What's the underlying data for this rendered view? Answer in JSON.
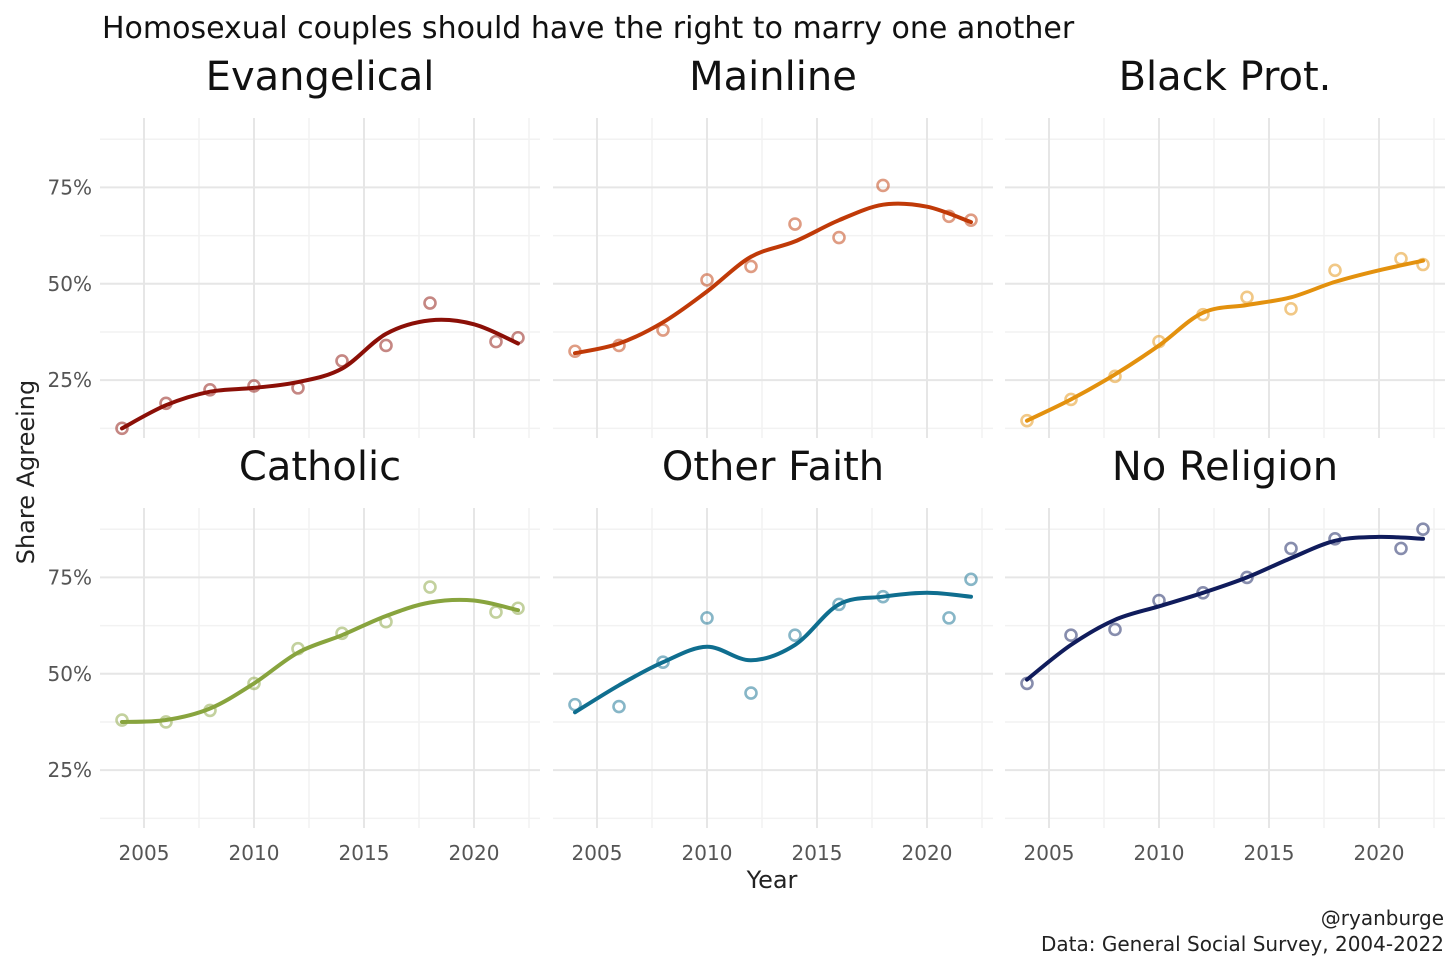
{
  "chart_data": {
    "type": "scatter",
    "title": "Homosexual couples should have the right to marry one another",
    "xlabel": "Year",
    "ylabel": "Share Agreeing",
    "xlim": [
      2003,
      2023
    ],
    "ylim": [
      0.1,
      0.93
    ],
    "x_ticks": [
      2005,
      2010,
      2015,
      2020
    ],
    "y_ticks": [
      0.25,
      0.5,
      0.75
    ],
    "x_tick_labels": [
      "2005",
      "2010",
      "2015",
      "2020"
    ],
    "y_tick_labels": [
      "25%",
      "50%",
      "75%"
    ],
    "caption_line1": "@ryanburge",
    "caption_line2": "Data: General Social Survey, 2004-2022",
    "layout": "facet 3 columns x 2 rows",
    "series": [
      {
        "name": "Evangelical",
        "color": "#8B0F07",
        "x": [
          2004,
          2006,
          2008,
          2010,
          2012,
          2014,
          2016,
          2018,
          2021,
          2022
        ],
        "values": [
          0.125,
          0.19,
          0.225,
          0.235,
          0.23,
          0.3,
          0.34,
          0.45,
          0.35,
          0.36
        ],
        "trend_x": [
          2004,
          2006,
          2008,
          2010,
          2012,
          2014,
          2016,
          2018,
          2020,
          2022
        ],
        "trend": [
          0.125,
          0.185,
          0.22,
          0.23,
          0.245,
          0.28,
          0.37,
          0.405,
          0.395,
          0.345
        ]
      },
      {
        "name": "Mainline",
        "color": "#C03A08",
        "x": [
          2004,
          2006,
          2008,
          2010,
          2012,
          2014,
          2016,
          2018,
          2021,
          2022
        ],
        "values": [
          0.325,
          0.34,
          0.38,
          0.51,
          0.545,
          0.655,
          0.62,
          0.755,
          0.675,
          0.665
        ],
        "trend_x": [
          2004,
          2006,
          2008,
          2010,
          2012,
          2014,
          2016,
          2018,
          2020,
          2022
        ],
        "trend": [
          0.32,
          0.345,
          0.4,
          0.48,
          0.57,
          0.61,
          0.665,
          0.705,
          0.7,
          0.66
        ]
      },
      {
        "name": "Black Prot.",
        "color": "#E3910E",
        "x": [
          2004,
          2006,
          2008,
          2010,
          2012,
          2014,
          2016,
          2018,
          2021,
          2022
        ],
        "values": [
          0.145,
          0.2,
          0.26,
          0.35,
          0.42,
          0.465,
          0.435,
          0.535,
          0.565,
          0.55
        ],
        "trend_x": [
          2004,
          2006,
          2008,
          2010,
          2012,
          2014,
          2016,
          2018,
          2020,
          2022
        ],
        "trend": [
          0.145,
          0.2,
          0.265,
          0.34,
          0.425,
          0.445,
          0.465,
          0.505,
          0.535,
          0.56
        ]
      },
      {
        "name": "Catholic",
        "color": "#88A43E",
        "x": [
          2004,
          2006,
          2008,
          2010,
          2012,
          2014,
          2016,
          2018,
          2021,
          2022
        ],
        "values": [
          0.38,
          0.375,
          0.405,
          0.475,
          0.565,
          0.605,
          0.635,
          0.725,
          0.66,
          0.67
        ],
        "trend_x": [
          2004,
          2006,
          2008,
          2010,
          2012,
          2014,
          2016,
          2018,
          2020,
          2022
        ],
        "trend": [
          0.375,
          0.38,
          0.41,
          0.475,
          0.555,
          0.6,
          0.65,
          0.685,
          0.69,
          0.665
        ]
      },
      {
        "name": "Other Faith",
        "color": "#0F6E8F",
        "x": [
          2004,
          2006,
          2008,
          2010,
          2012,
          2014,
          2016,
          2018,
          2021,
          2022
        ],
        "values": [
          0.42,
          0.415,
          0.53,
          0.645,
          0.45,
          0.6,
          0.68,
          0.7,
          0.645,
          0.745
        ],
        "trend_x": [
          2004,
          2006,
          2008,
          2010,
          2012,
          2014,
          2016,
          2018,
          2020,
          2022
        ],
        "trend": [
          0.4,
          0.47,
          0.53,
          0.57,
          0.535,
          0.575,
          0.68,
          0.7,
          0.71,
          0.7
        ]
      },
      {
        "name": "No Religion",
        "color": "#101C5C",
        "x": [
          2004,
          2006,
          2008,
          2010,
          2012,
          2014,
          2016,
          2018,
          2021,
          2022
        ],
        "values": [
          0.475,
          0.6,
          0.615,
          0.69,
          0.71,
          0.75,
          0.825,
          0.85,
          0.825,
          0.875
        ],
        "trend_x": [
          2004,
          2006,
          2008,
          2010,
          2012,
          2014,
          2016,
          2018,
          2020,
          2022
        ],
        "trend": [
          0.485,
          0.575,
          0.64,
          0.675,
          0.71,
          0.75,
          0.8,
          0.845,
          0.855,
          0.85
        ]
      }
    ]
  }
}
